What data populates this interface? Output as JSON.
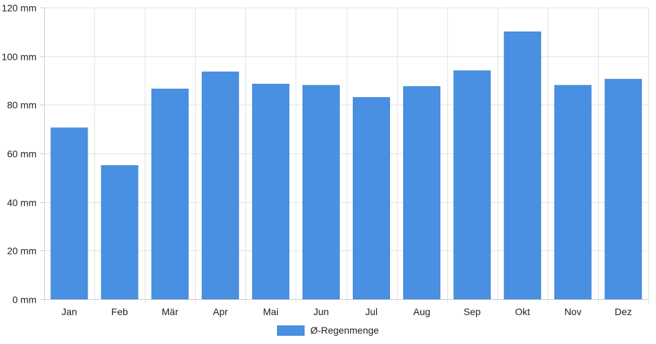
{
  "chart_data": {
    "type": "bar",
    "categories": [
      "Jan",
      "Feb",
      "Mär",
      "Apr",
      "Mai",
      "Jun",
      "Jul",
      "Aug",
      "Sep",
      "Okt",
      "Nov",
      "Dez"
    ],
    "series": [
      {
        "name": "Ø-Regenmenge",
        "values": [
          70.5,
          55,
          86.5,
          93.5,
          88.5,
          88,
          83,
          87.5,
          94,
          110,
          88,
          90.5
        ],
        "color": "#4a90e2"
      }
    ],
    "ylim": [
      0,
      120
    ],
    "yticks": [
      0,
      20,
      40,
      60,
      80,
      100,
      120
    ],
    "ytick_labels": [
      "0 mm",
      "20 mm",
      "40 mm",
      "60 mm",
      "80 mm",
      "100 mm",
      "120 mm"
    ],
    "grid": true,
    "legend_position": "bottom-center"
  }
}
